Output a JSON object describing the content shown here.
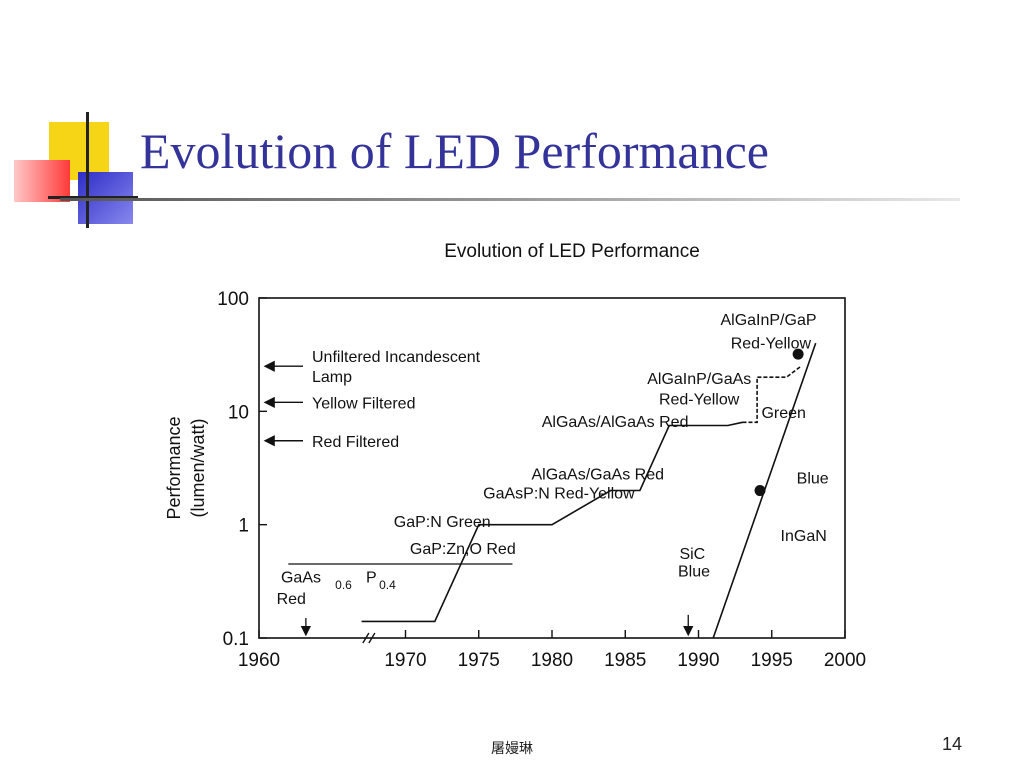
{
  "slide": {
    "title": "Evolution of LED Performance",
    "footer": "屠嫚琳",
    "page_number": "14"
  },
  "colors": {
    "title": "#33339a",
    "square_yellow": "#f5d515",
    "square_red": "#ff3a3a",
    "square_blue": "#2d2dc8"
  },
  "chart_data": {
    "type": "line",
    "title": "Evolution of LED Performance",
    "ylabel": "Performance (lumen/watt)",
    "xlabel": "",
    "y_scale": "log",
    "xlim": [
      1960,
      2000
    ],
    "ylim": [
      0.1,
      100
    ],
    "x_ticks": [
      "1960",
      "1970",
      "1975",
      "1980",
      "1985",
      "1990",
      "1995",
      "2000"
    ],
    "y_ticks": [
      "0.1",
      "1",
      "10",
      "100"
    ],
    "reference_levels": [
      {
        "label_lines": [
          "Unfiltered Incandescent",
          "Lamp"
        ],
        "value": 25
      },
      {
        "label_lines": [
          "Yellow Filtered"
        ],
        "value": 12
      },
      {
        "label_lines": [
          "Red Filtered"
        ],
        "value": 5.5
      }
    ],
    "series": [
      {
        "points": [
          [
            1967,
            0.14
          ],
          [
            1972,
            0.14
          ],
          [
            1975,
            1
          ],
          [
            1980,
            1
          ],
          [
            1984,
            2
          ],
          [
            1986,
            2
          ],
          [
            1988,
            7.5
          ],
          [
            1992,
            7.5
          ],
          [
            1993,
            8
          ]
        ]
      },
      {
        "points": [
          [
            1993,
            8
          ],
          [
            1994,
            8
          ],
          [
            1994,
            20
          ],
          [
            1996,
            20
          ],
          [
            1997,
            25
          ]
        ]
      },
      {
        "points": [
          [
            1991,
            0.1
          ],
          [
            1998,
            40
          ]
        ]
      }
    ],
    "markers": [
      {
        "x": 1994.2,
        "y": 2
      },
      {
        "x": 1996.8,
        "y": 32
      }
    ],
    "annotations": [
      {
        "text": "AlGaInP/GaP",
        "x": 1991.5,
        "y": 58
      },
      {
        "text": "Red-Yellow",
        "x": 1992.2,
        "y": 36
      },
      {
        "text": "AlGaInP/GaAs",
        "x": 1986.5,
        "y": 17.5
      },
      {
        "text": "Red-Yellow",
        "x": 1987.3,
        "y": 11.5
      },
      {
        "text": "AlGaAs/AlGaAs Red",
        "x": 1979.3,
        "y": 7.3
      },
      {
        "text": "Green",
        "x": 1994.3,
        "y": 8.7
      },
      {
        "text": "AlGaAs/GaAs Red",
        "x": 1978.6,
        "y": 2.5
      },
      {
        "text": "Blue",
        "x": 1996.7,
        "y": 2.3
      },
      {
        "text": "GaAsP:N Red-Yellow",
        "x": 1975.3,
        "y": 1.7
      },
      {
        "text": "GaP:N Green",
        "x": 1969.2,
        "y": 0.95
      },
      {
        "text": "InGaN",
        "x": 1995.6,
        "y": 0.72
      },
      {
        "text": "GaP:Zn,O Red",
        "x": 1970.3,
        "y": 0.55
      },
      {
        "text": "SiC",
        "x": 1988.7,
        "y": 0.5
      },
      {
        "text": "Blue",
        "x": 1988.6,
        "y": 0.35
      },
      {
        "text": "GaAs",
        "x": 1961.5,
        "y": 0.31
      },
      {
        "text": "0.6",
        "x": 1965.2,
        "y": 0.27
      },
      {
        "text": "P",
        "x": 1967.3,
        "y": 0.31
      },
      {
        "text": "0.4",
        "x": 1968.2,
        "y": 0.27
      },
      {
        "text": "Red",
        "x": 1961.2,
        "y": 0.2
      }
    ]
  }
}
